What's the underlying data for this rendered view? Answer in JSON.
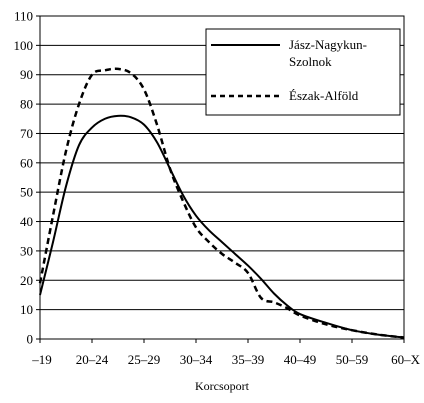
{
  "chart_data": {
    "type": "line",
    "xlabel": "Korcsoport",
    "ylabel": "",
    "ylim": [
      0,
      110
    ],
    "yticks": [
      0,
      10,
      20,
      30,
      40,
      50,
      60,
      70,
      80,
      90,
      100,
      110
    ],
    "grid": "horizontal",
    "legend_position": "top-right",
    "categories": [
      "–19",
      "20–24",
      "25–29",
      "30–34",
      "35–39",
      "40–49",
      "50–59",
      "60–X"
    ],
    "series": [
      {
        "name": "Jász-Nagykun-Szolnok",
        "style": "solid",
        "color": "#000000",
        "points": [
          [
            0,
            15
          ],
          [
            0.25,
            33
          ],
          [
            0.5,
            52
          ],
          [
            0.75,
            66
          ],
          [
            1,
            72
          ],
          [
            1.25,
            75
          ],
          [
            1.5,
            76
          ],
          [
            1.75,
            75.5
          ],
          [
            2,
            73
          ],
          [
            2.25,
            67
          ],
          [
            2.5,
            58
          ],
          [
            2.75,
            49
          ],
          [
            3,
            42
          ],
          [
            3.25,
            37
          ],
          [
            3.5,
            33
          ],
          [
            3.75,
            29
          ],
          [
            4,
            25
          ],
          [
            4.25,
            20.5
          ],
          [
            4.5,
            15.5
          ],
          [
            4.75,
            11.5
          ],
          [
            5,
            8.5
          ],
          [
            5.5,
            5.5
          ],
          [
            6,
            3
          ],
          [
            6.5,
            1.5
          ],
          [
            7,
            0.5
          ]
        ]
      },
      {
        "name": "Észak-Alföld",
        "style": "dashed",
        "color": "#000000",
        "points": [
          [
            0,
            19
          ],
          [
            0.25,
            42
          ],
          [
            0.5,
            64
          ],
          [
            0.75,
            80
          ],
          [
            1,
            90
          ],
          [
            1.25,
            91.5
          ],
          [
            1.5,
            92
          ],
          [
            1.75,
            90.5
          ],
          [
            2,
            85
          ],
          [
            2.25,
            73
          ],
          [
            2.5,
            58
          ],
          [
            2.75,
            47
          ],
          [
            3,
            38
          ],
          [
            3.25,
            33
          ],
          [
            3.5,
            29
          ],
          [
            3.75,
            26
          ],
          [
            4,
            22.5
          ],
          [
            4.25,
            14
          ],
          [
            4.5,
            12.5
          ],
          [
            4.75,
            10.5
          ],
          [
            5,
            8
          ],
          [
            5.5,
            5
          ],
          [
            6,
            3
          ],
          [
            6.5,
            1.5
          ],
          [
            7,
            0.5
          ]
        ]
      }
    ]
  }
}
